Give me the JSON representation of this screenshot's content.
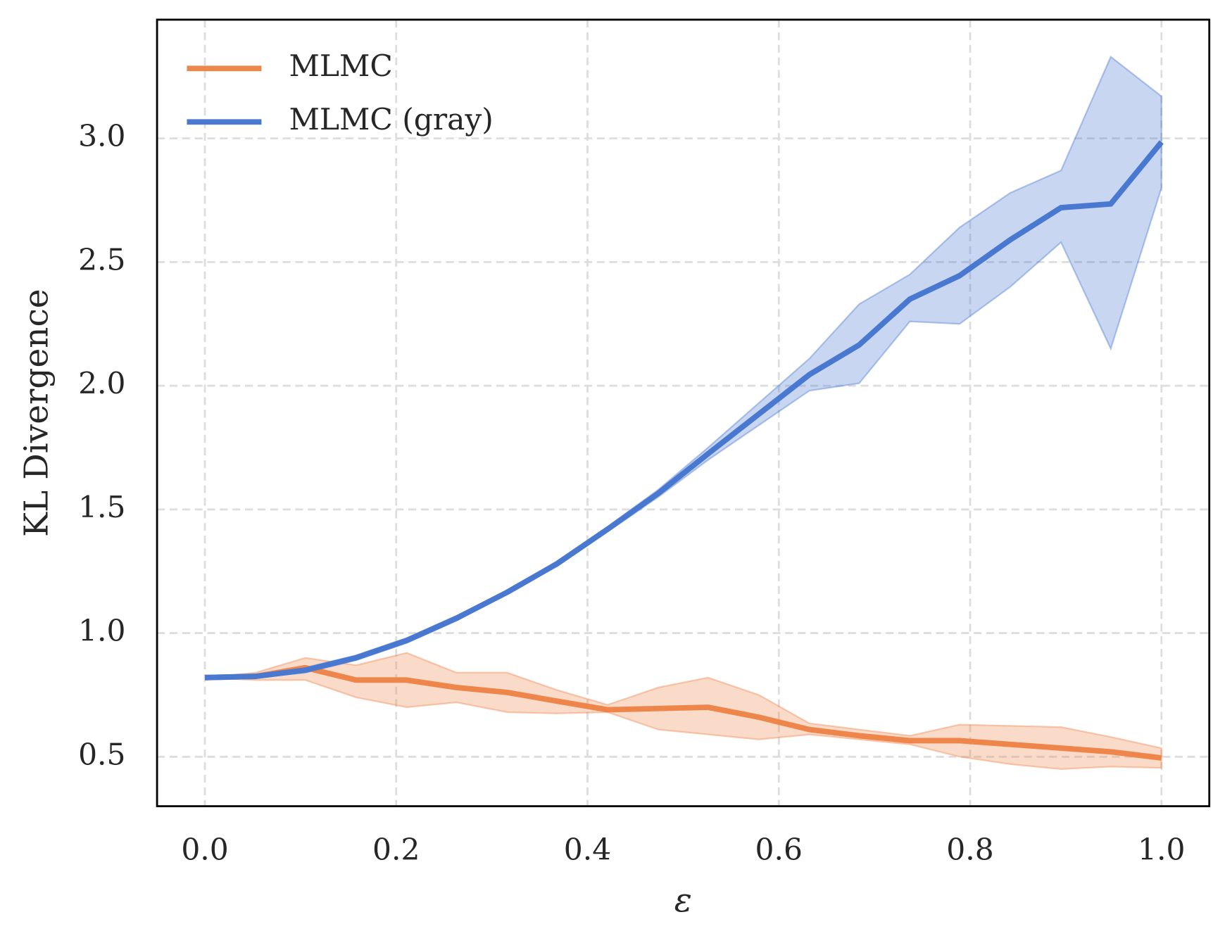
{
  "chart_data": {
    "type": "line",
    "xlabel": "ε",
    "ylabel": "KL Divergence",
    "x": [
      0,
      0.053,
      0.105,
      0.158,
      0.211,
      0.263,
      0.316,
      0.368,
      0.421,
      0.474,
      0.526,
      0.579,
      0.632,
      0.684,
      0.737,
      0.789,
      0.842,
      0.895,
      0.947,
      1.0
    ],
    "series": [
      {
        "name": "MLMC",
        "color": "#ee854a",
        "values": [
          0.82,
          0.825,
          0.86,
          0.81,
          0.81,
          0.78,
          0.76,
          0.725,
          0.69,
          0.695,
          0.7,
          0.66,
          0.61,
          0.585,
          0.565,
          0.565,
          0.55,
          0.535,
          0.52,
          0.495
        ],
        "lower": [
          0.82,
          0.81,
          0.81,
          0.74,
          0.7,
          0.72,
          0.68,
          0.675,
          0.68,
          0.61,
          0.59,
          0.57,
          0.59,
          0.57,
          0.55,
          0.5,
          0.47,
          0.45,
          0.46,
          0.455
        ],
        "upper": [
          0.82,
          0.84,
          0.9,
          0.87,
          0.92,
          0.84,
          0.84,
          0.77,
          0.71,
          0.78,
          0.82,
          0.75,
          0.635,
          0.61,
          0.585,
          0.63,
          0.625,
          0.62,
          0.58,
          0.535
        ]
      },
      {
        "name": "MLMC (gray)",
        "color": "#4878d0",
        "values": [
          0.82,
          0.825,
          0.85,
          0.9,
          0.97,
          1.06,
          1.165,
          1.28,
          1.42,
          1.565,
          1.725,
          1.885,
          2.045,
          2.165,
          2.35,
          2.445,
          2.59,
          2.72,
          2.735,
          2.985
        ],
        "lower": [
          0.82,
          0.82,
          0.84,
          0.89,
          0.96,
          1.05,
          1.16,
          1.27,
          1.41,
          1.55,
          1.7,
          1.84,
          1.98,
          2.01,
          2.26,
          2.25,
          2.4,
          2.58,
          2.15,
          2.8
        ],
        "upper": [
          0.82,
          0.83,
          0.86,
          0.91,
          0.98,
          1.07,
          1.17,
          1.29,
          1.43,
          1.58,
          1.75,
          1.93,
          2.11,
          2.33,
          2.45,
          2.64,
          2.78,
          2.87,
          3.33,
          3.17
        ]
      }
    ],
    "xlim": [
      -0.05,
      1.05
    ],
    "ylim": [
      0.3,
      3.48
    ],
    "xticks": [
      {
        "value": 0,
        "label": "0.0"
      },
      0.2,
      0.4,
      0.6,
      0.8,
      {
        "value": 1,
        "label": "1.0"
      }
    ],
    "yticks": [
      0.5,
      {
        "value": 1,
        "label": "1.0"
      },
      1.5,
      {
        "value": 2,
        "label": "2.0"
      },
      2.5,
      {
        "value": 3,
        "label": "3.0"
      }
    ],
    "grid": true,
    "legend": "upper left"
  }
}
